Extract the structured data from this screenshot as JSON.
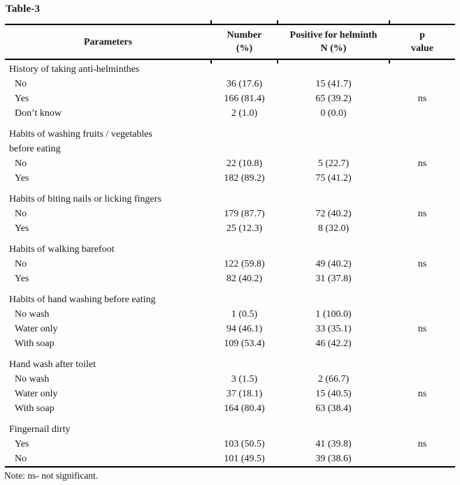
{
  "title": "Table-3",
  "colors": {
    "text": "#1b1b1b",
    "rule": "#000000",
    "background": "#fdfdfd"
  },
  "table": {
    "header": {
      "parameters": "Parameters",
      "number": [
        "Number",
        "(%)"
      ],
      "positive": [
        "Positive for helminth",
        "N (%)"
      ],
      "p": [
        "p",
        "value"
      ]
    },
    "sections": [
      {
        "label_lines": [
          "History of taking anti-helminthes"
        ],
        "rows": [
          {
            "param": "No",
            "number": "36 (17.6)",
            "positive": "15 (41.7)",
            "p": ""
          },
          {
            "param": "Yes",
            "number": "166 (81.4)",
            "positive": "65 (39.2)",
            "p": "ns"
          },
          {
            "param": "Don’t know",
            "number": "2 (1.0)",
            "positive": "0 (0.0)",
            "p": ""
          }
        ]
      },
      {
        "label_lines": [
          "Habits of washing fruits / vegetables",
          "before eating"
        ],
        "rows": [
          {
            "param": "No",
            "number": "22 (10.8)",
            "positive": "5 (22.7)",
            "p": "ns"
          },
          {
            "param": "Yes",
            "number": "182 (89.2)",
            "positive": "75 (41.2)",
            "p": ""
          }
        ]
      },
      {
        "label_lines": [
          "Habits of biting nails or licking fingers"
        ],
        "rows": [
          {
            "param": "No",
            "number": "179 (87.7)",
            "positive": "72 (40.2)",
            "p": "ns"
          },
          {
            "param": "Yes",
            "number": "25 (12.3)",
            "positive": "8 (32.0)",
            "p": ""
          }
        ]
      },
      {
        "label_lines": [
          "Habits of walking barefoot"
        ],
        "rows": [
          {
            "param": "No",
            "number": "122 (59.8)",
            "positive": "49 (40.2)",
            "p": "ns"
          },
          {
            "param": "Yes",
            "number": "82 (40.2)",
            "positive": "31 (37.8)",
            "p": ""
          }
        ]
      },
      {
        "label_lines": [
          "Habits of hand washing before eating"
        ],
        "rows": [
          {
            "param": "No wash",
            "number": "1 (0.5)",
            "positive": "1 (100.0)",
            "p": ""
          },
          {
            "param": "Water only",
            "number": "94 (46.1)",
            "positive": "33 (35.1)",
            "p": "ns"
          },
          {
            "param": "With soap",
            "number": "109 (53.4)",
            "positive": "46 (42.2)",
            "p": ""
          }
        ]
      },
      {
        "label_lines": [
          "Hand wash after toilet"
        ],
        "rows": [
          {
            "param": "No wash",
            "number": "3 (1.5)",
            "positive": "2 (66.7)",
            "p": ""
          },
          {
            "param": "Water only",
            "number": "37 (18.1)",
            "positive": "15 (40.5)",
            "p": "ns"
          },
          {
            "param": "With soap",
            "number": "164 (80.4)",
            "positive": "63 (38.4)",
            "p": ""
          }
        ]
      },
      {
        "label_lines": [
          "Fingernail dirty"
        ],
        "rows": [
          {
            "param": "Yes",
            "number": "103 (50.5)",
            "positive": "41 (39.8)",
            "p": "ns"
          },
          {
            "param": "No",
            "number": "101 (49.5)",
            "positive": "39 (38.6)",
            "p": ""
          }
        ]
      }
    ]
  },
  "note": "Note: ns- not significant."
}
